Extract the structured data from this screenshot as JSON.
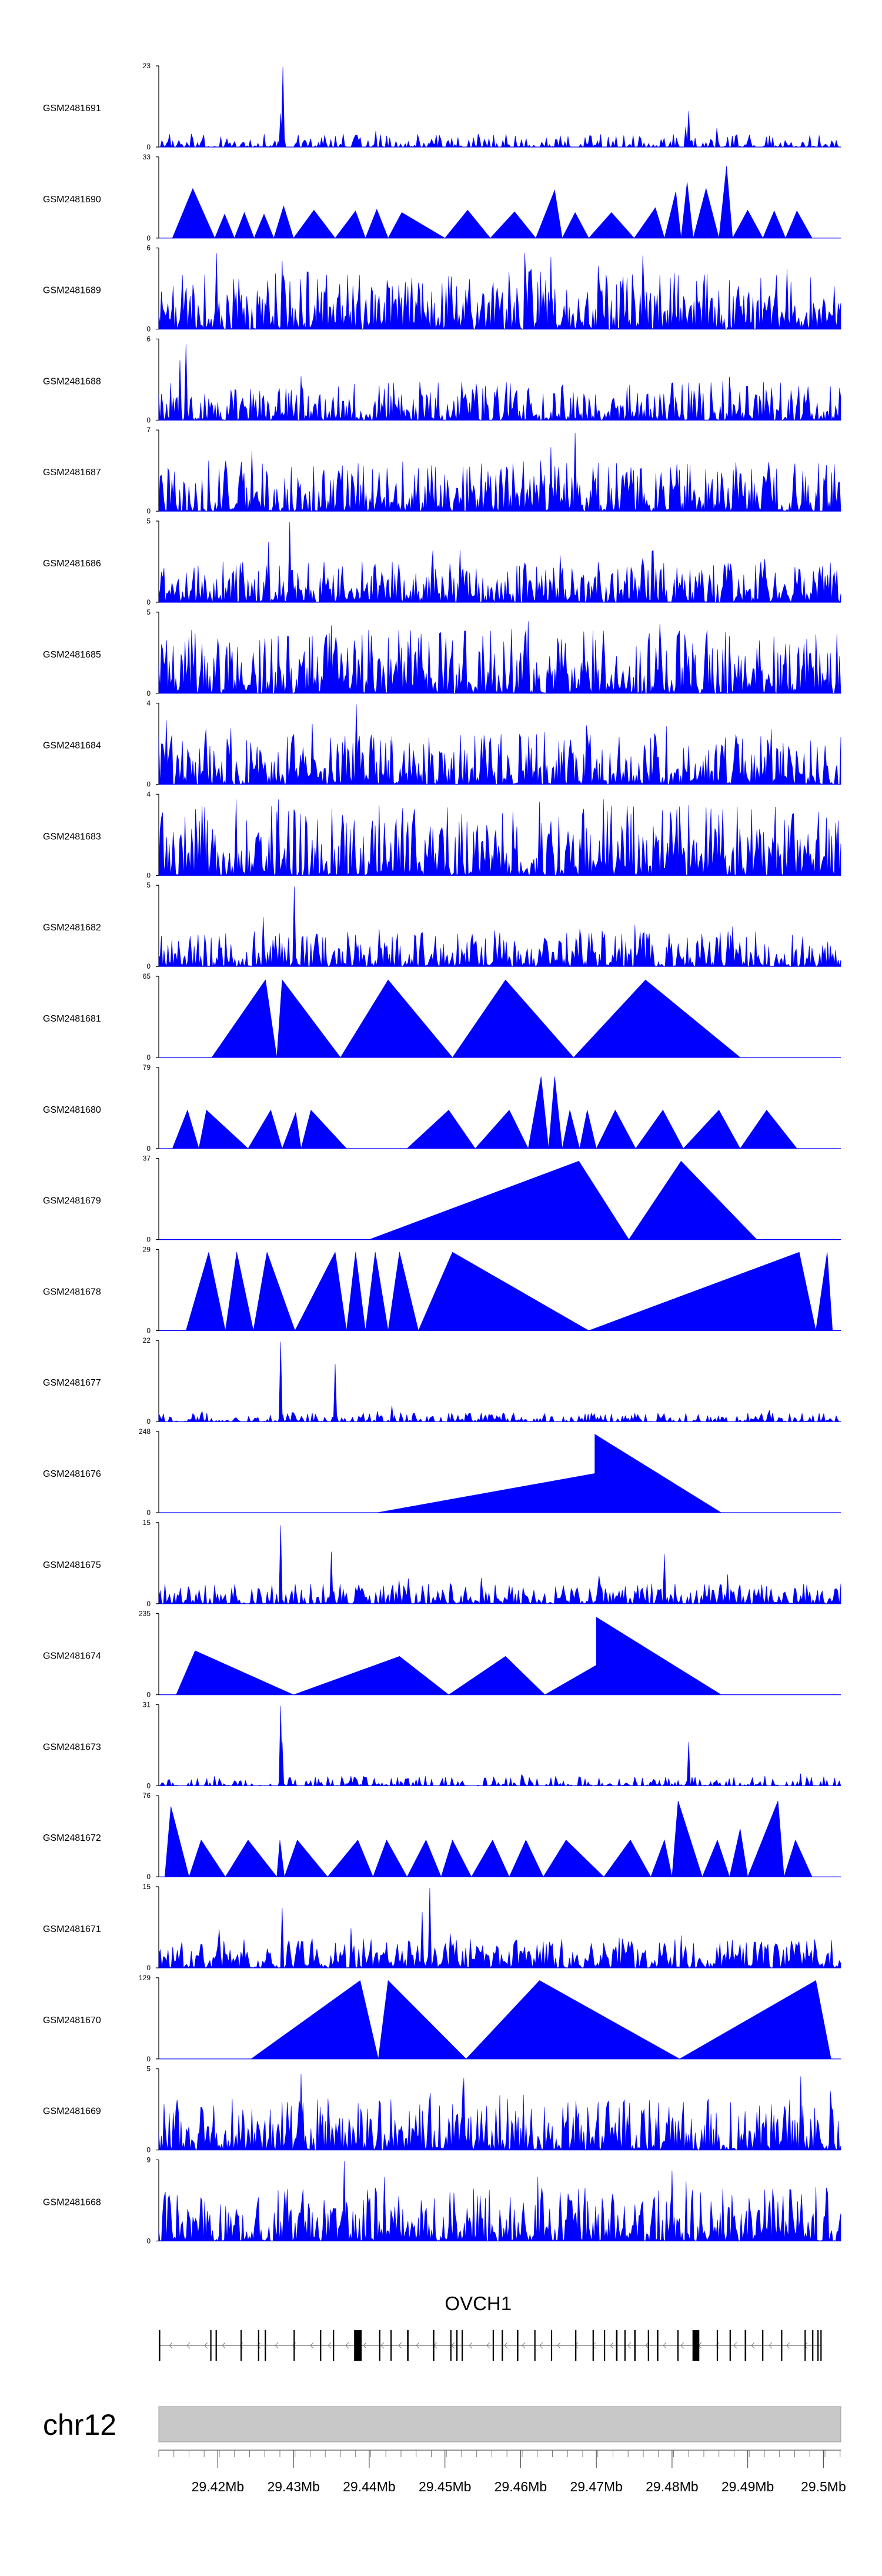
{
  "chart_data": {
    "type": "area",
    "title": "",
    "xlabel": "",
    "ylabel": "",
    "xlim": [
      29.4122,
      29.5023
    ],
    "colors": {
      "signal": "#0000ff",
      "ideogram": "#c8c8c8",
      "gene": "#000000"
    },
    "series": [
      {
        "name": "GSM2481691",
        "ymax": 23,
        "ymin": 0,
        "pattern": "dense",
        "density": 0.6,
        "level": 0.12,
        "peaks": [
          [
            29.4286,
            1.0
          ],
          [
            29.4283,
            0.42
          ],
          [
            29.4286,
            0.55
          ],
          [
            29.4822,
            0.45
          ],
          [
            29.4818,
            0.25
          ]
        ]
      },
      {
        "name": "GSM2481690",
        "ymax": 33,
        "ymin": 0,
        "pattern": "tri",
        "triangles": [
          [
            29.414,
            29.4167,
            29.4196,
            0.62
          ],
          [
            29.4196,
            29.4209,
            29.4222,
            0.3
          ],
          [
            29.4222,
            29.4235,
            29.4248,
            0.32
          ],
          [
            29.4248,
            29.4261,
            29.4274,
            0.3
          ],
          [
            29.4274,
            29.4287,
            29.43,
            0.4
          ],
          [
            29.43,
            29.4327,
            29.4355,
            0.35
          ],
          [
            29.4355,
            29.4382,
            29.4395,
            0.34
          ],
          [
            29.4395,
            29.441,
            29.4425,
            0.36
          ],
          [
            29.4425,
            29.4443,
            29.45,
            0.32
          ],
          [
            29.45,
            29.453,
            29.456,
            0.35
          ],
          [
            29.456,
            29.4592,
            29.462,
            0.33
          ],
          [
            29.462,
            29.4645,
            29.4655,
            0.6
          ],
          [
            29.4655,
            29.4672,
            29.469,
            0.32
          ],
          [
            29.469,
            29.472,
            29.475,
            0.32
          ],
          [
            29.475,
            29.4778,
            29.479,
            0.38
          ],
          [
            29.479,
            29.4805,
            29.4812,
            0.58
          ],
          [
            29.4812,
            29.482,
            29.4828,
            0.7
          ],
          [
            29.4828,
            29.4845,
            29.4862,
            0.62
          ],
          [
            29.4862,
            29.4872,
            29.488,
            0.9
          ],
          [
            29.488,
            29.49,
            29.492,
            0.35
          ],
          [
            29.492,
            29.4935,
            29.495,
            0.34
          ],
          [
            29.495,
            29.4965,
            29.4985,
            0.34
          ]
        ]
      },
      {
        "name": "GSM2481689",
        "ymax": 6,
        "ymin": 0,
        "pattern": "spiky",
        "density": 1.0,
        "level": 0.45,
        "peaks": [
          [
            29.4285,
            0.85
          ],
          [
            29.4286,
            0.65
          ],
          [
            29.464,
            0.9
          ]
        ]
      },
      {
        "name": "GSM2481688",
        "ymax": 6,
        "ymin": 0,
        "pattern": "spiky",
        "density": 0.95,
        "level": 0.3,
        "peaks": [
          [
            29.4158,
            0.95
          ],
          [
            29.415,
            0.75
          ],
          [
            29.431,
            0.55
          ]
        ]
      },
      {
        "name": "GSM2481687",
        "ymax": 7,
        "ymin": 0,
        "pattern": "spiky",
        "density": 1.0,
        "level": 0.4,
        "peaks": [
          [
            29.4672,
            0.98
          ],
          [
            29.464,
            0.8
          ],
          [
            29.4245,
            0.75
          ]
        ]
      },
      {
        "name": "GSM2481686",
        "ymax": 5,
        "ymin": 0,
        "pattern": "spiky",
        "density": 1.0,
        "level": 0.32,
        "peaks": [
          [
            29.4295,
            1.0
          ],
          [
            29.4267,
            0.75
          ],
          [
            29.452,
            0.65
          ]
        ]
      },
      {
        "name": "GSM2481685",
        "ymax": 5,
        "ymin": 0,
        "pattern": "spiky",
        "density": 1.0,
        "level": 0.5,
        "peaks": [
          [
            29.417,
            0.75
          ],
          [
            29.435,
            0.85
          ],
          [
            29.461,
            0.9
          ]
        ]
      },
      {
        "name": "GSM2481684",
        "ymax": 4,
        "ymin": 0,
        "pattern": "spiky",
        "density": 1.0,
        "level": 0.4,
        "peaks": [
          [
            29.4383,
            1.0
          ],
          [
            29.4132,
            0.8
          ],
          [
            29.443,
            0.6
          ]
        ]
      },
      {
        "name": "GSM2481683",
        "ymax": 4,
        "ymin": 0,
        "pattern": "spiky",
        "density": 1.0,
        "level": 0.55,
        "peaks": [
          [
            29.428,
            0.95
          ],
          [
            29.4625,
            0.92
          ],
          [
            29.4845,
            0.85
          ]
        ]
      },
      {
        "name": "GSM2481682",
        "ymax": 5,
        "ymin": 0,
        "pattern": "spiky",
        "density": 0.95,
        "level": 0.28,
        "peaks": [
          [
            29.4301,
            1.0
          ],
          [
            29.426,
            0.62
          ],
          [
            29.488,
            0.5
          ]
        ]
      },
      {
        "name": "GSM2481681",
        "ymax": 65,
        "ymin": 0,
        "pattern": "tri",
        "triangles": [
          [
            29.4192,
            29.4263,
            29.4278,
            0.97
          ],
          [
            29.4278,
            29.4285,
            29.4362,
            0.97
          ],
          [
            29.4362,
            29.4425,
            29.451,
            0.97
          ],
          [
            29.451,
            29.458,
            29.467,
            0.97
          ],
          [
            29.467,
            29.4765,
            29.489,
            0.97
          ]
        ]
      },
      {
        "name": "GSM2481680",
        "ymax": 79,
        "ymin": 0,
        "pattern": "tri",
        "triangles": [
          [
            29.414,
            29.416,
            29.4175,
            0.48
          ],
          [
            29.4175,
            29.4185,
            29.424,
            0.48
          ],
          [
            29.424,
            29.427,
            29.4285,
            0.48
          ],
          [
            29.4285,
            29.4303,
            29.431,
            0.45
          ],
          [
            29.431,
            29.4323,
            29.437,
            0.48
          ],
          [
            29.445,
            29.4505,
            29.454,
            0.48
          ],
          [
            29.454,
            29.4585,
            29.461,
            0.48
          ],
          [
            29.461,
            29.4627,
            29.4637,
            0.9
          ],
          [
            29.4637,
            29.4645,
            29.4655,
            0.9
          ],
          [
            29.4655,
            29.4665,
            29.4678,
            0.48
          ],
          [
            29.4678,
            29.4688,
            29.47,
            0.48
          ],
          [
            29.47,
            29.4725,
            29.4752,
            0.48
          ],
          [
            29.4752,
            29.4788,
            29.4815,
            0.48
          ],
          [
            29.4815,
            29.4862,
            29.489,
            0.48
          ],
          [
            29.489,
            29.4925,
            29.4965,
            0.48
          ]
        ]
      },
      {
        "name": "GSM2481679",
        "ymax": 37,
        "ymin": 0,
        "pattern": "tri",
        "triangles": [
          [
            29.44,
            29.4677,
            29.4743,
            0.98
          ],
          [
            29.4743,
            29.4812,
            29.4912,
            0.98
          ]
        ]
      },
      {
        "name": "GSM2481678",
        "ymax": 29,
        "ymin": 0,
        "pattern": "tri",
        "triangles": [
          [
            29.4158,
            29.4188,
            29.421,
            0.98
          ],
          [
            29.421,
            29.4225,
            29.4247,
            0.98
          ],
          [
            29.4247,
            29.4265,
            29.4302,
            0.98
          ],
          [
            29.4302,
            29.4355,
            29.437,
            0.98
          ],
          [
            29.437,
            29.4382,
            29.4395,
            0.98
          ],
          [
            29.4395,
            29.4408,
            29.4425,
            0.98
          ],
          [
            29.4425,
            29.444,
            29.4465,
            0.98
          ],
          [
            29.4465,
            29.451,
            29.469,
            0.98
          ],
          [
            29.469,
            29.4968,
            29.499,
            0.98
          ],
          [
            29.499,
            29.5005,
            29.5012,
            0.98
          ]
        ]
      },
      {
        "name": "GSM2481677",
        "ymax": 22,
        "ymin": 0,
        "pattern": "dense",
        "density": 0.7,
        "level": 0.08,
        "peaks": [
          [
            29.4283,
            1.0
          ],
          [
            29.4355,
            0.72
          ],
          [
            29.443,
            0.2
          ]
        ]
      },
      {
        "name": "GSM2481676",
        "ymax": 248,
        "ymin": 0,
        "pattern": "tri",
        "triangles": [
          [
            29.441,
            29.4698,
            29.4698,
            0.49
          ],
          [
            29.4698,
            29.4698,
            29.4865,
            0.98
          ]
        ]
      },
      {
        "name": "GSM2481675",
        "ymax": 15,
        "ymin": 0,
        "pattern": "dense",
        "density": 0.85,
        "level": 0.18,
        "peaks": [
          [
            29.4283,
            0.98
          ],
          [
            29.435,
            0.65
          ],
          [
            29.479,
            0.62
          ]
        ]
      },
      {
        "name": "GSM2481674",
        "ymax": 235,
        "ymin": 0,
        "pattern": "tri",
        "triangles": [
          [
            29.4145,
            29.417,
            29.43,
            0.55
          ],
          [
            29.43,
            29.444,
            29.4505,
            0.48
          ],
          [
            29.4505,
            29.458,
            29.4632,
            0.48
          ],
          [
            29.4632,
            29.47,
            29.47,
            0.37
          ],
          [
            29.47,
            29.47,
            29.4865,
            0.97
          ]
        ]
      },
      {
        "name": "GSM2481673",
        "ymax": 31,
        "ymin": 0,
        "pattern": "dense",
        "density": 0.6,
        "level": 0.09,
        "peaks": [
          [
            29.4283,
            1.0
          ],
          [
            29.4285,
            0.55
          ],
          [
            29.4822,
            0.55
          ]
        ]
      },
      {
        "name": "GSM2481672",
        "ymax": 76,
        "ymin": 0,
        "pattern": "tri",
        "triangles": [
          [
            29.413,
            29.4138,
            29.4162,
            0.88
          ],
          [
            29.4162,
            29.4178,
            29.421,
            0.46
          ],
          [
            29.421,
            29.424,
            29.4278,
            0.46
          ],
          [
            29.4278,
            29.4282,
            29.4288,
            0.46
          ],
          [
            29.4288,
            29.4305,
            29.4345,
            0.46
          ],
          [
            29.4345,
            29.4385,
            29.4405,
            0.46
          ],
          [
            29.4405,
            29.4423,
            29.445,
            0.46
          ],
          [
            29.445,
            29.4475,
            29.4495,
            0.46
          ],
          [
            29.4495,
            29.451,
            29.4535,
            0.46
          ],
          [
            29.4535,
            29.4563,
            29.4585,
            0.46
          ],
          [
            29.4585,
            29.4607,
            29.463,
            0.46
          ],
          [
            29.463,
            29.466,
            29.471,
            0.46
          ],
          [
            29.471,
            29.4745,
            29.4772,
            0.46
          ],
          [
            29.4772,
            29.479,
            29.48,
            0.46
          ],
          [
            29.48,
            29.4808,
            29.484,
            0.95
          ],
          [
            29.484,
            29.486,
            29.4876,
            0.46
          ],
          [
            29.4876,
            29.489,
            29.49,
            0.6
          ],
          [
            29.49,
            29.494,
            29.4948,
            0.95
          ],
          [
            29.4948,
            29.4963,
            29.4985,
            0.46
          ]
        ]
      },
      {
        "name": "GSM2481671",
        "ymax": 15,
        "ymin": 0,
        "pattern": "dense",
        "density": 0.95,
        "level": 0.26,
        "peaks": [
          [
            29.448,
            1.0
          ],
          [
            29.447,
            0.7
          ],
          [
            29.4285,
            0.75
          ]
        ]
      },
      {
        "name": "GSM2481670",
        "ymax": 129,
        "ymin": 0,
        "pattern": "tri",
        "triangles": [
          [
            29.4244,
            29.4388,
            29.4412,
            0.98
          ],
          [
            29.4412,
            29.4425,
            29.4528,
            0.98
          ],
          [
            29.4528,
            29.4625,
            29.481,
            0.98
          ],
          [
            29.481,
            29.499,
            29.501,
            0.98
          ]
        ]
      },
      {
        "name": "GSM2481669",
        "ymax": 5,
        "ymin": 0,
        "pattern": "spiky",
        "density": 1.0,
        "level": 0.4,
        "peaks": [
          [
            29.431,
            0.95
          ],
          [
            29.4525,
            0.9
          ],
          [
            29.497,
            0.92
          ]
        ]
      },
      {
        "name": "GSM2481668",
        "ymax": 9,
        "ymin": 0,
        "pattern": "spiky",
        "density": 1.0,
        "level": 0.42,
        "peaks": [
          [
            29.4367,
            1.0
          ],
          [
            29.442,
            0.8
          ],
          [
            29.48,
            0.88
          ]
        ]
      }
    ],
    "gene": {
      "name": "OVCH1",
      "strand": "-",
      "start": 29.4122,
      "end": 29.4997,
      "exons": [
        [
          29.4122,
          29.4124
        ],
        [
          29.419,
          29.4191
        ],
        [
          29.4197,
          29.4198
        ],
        [
          29.423,
          29.4231
        ],
        [
          29.4253,
          29.4254
        ],
        [
          29.4262,
          29.4263
        ],
        [
          29.43,
          29.4301
        ],
        [
          29.4335,
          29.4336
        ],
        [
          29.4352,
          29.4353
        ],
        [
          29.438,
          29.439
        ],
        [
          29.4413,
          29.4414
        ],
        [
          29.4428,
          29.4429
        ],
        [
          29.445,
          29.4452
        ],
        [
          29.4484,
          29.4486
        ],
        [
          29.4507,
          29.4508
        ],
        [
          29.4515,
          29.4516
        ],
        [
          29.4522,
          29.4523
        ],
        [
          29.4563,
          29.4564
        ],
        [
          29.4575,
          29.4576
        ],
        [
          29.4595,
          29.4597
        ],
        [
          29.4618,
          29.4619
        ],
        [
          29.464,
          29.4641
        ],
        [
          29.4672,
          29.4673
        ],
        [
          29.4695,
          29.4696
        ],
        [
          29.471,
          29.4711
        ],
        [
          29.4726,
          29.4728
        ],
        [
          29.4737,
          29.4738
        ],
        [
          29.475,
          29.4752
        ],
        [
          29.4768,
          29.4769
        ],
        [
          29.478,
          29.4782
        ],
        [
          29.4807,
          29.4808
        ],
        [
          29.4827,
          29.4836
        ],
        [
          29.4859,
          29.486
        ],
        [
          29.4876,
          29.4877
        ],
        [
          29.4896,
          29.4898
        ],
        [
          29.4919,
          29.492
        ],
        [
          29.4944,
          29.4945
        ],
        [
          29.4975,
          29.4976
        ],
        [
          29.4985,
          29.4986
        ],
        [
          29.4992,
          29.4993
        ],
        [
          29.4996,
          29.4997
        ]
      ]
    },
    "ideogram": {
      "label": "chr12",
      "ticks": [
        29.42,
        29.43,
        29.44,
        29.45,
        29.46,
        29.47,
        29.48,
        29.49,
        29.5
      ],
      "tick_labels": [
        "29.42Mb",
        "29.43Mb",
        "29.44Mb",
        "29.45Mb",
        "29.46Mb",
        "29.47Mb",
        "29.48Mb",
        "29.49Mb",
        "29.5Mb"
      ],
      "minor_step": 0.002
    }
  }
}
